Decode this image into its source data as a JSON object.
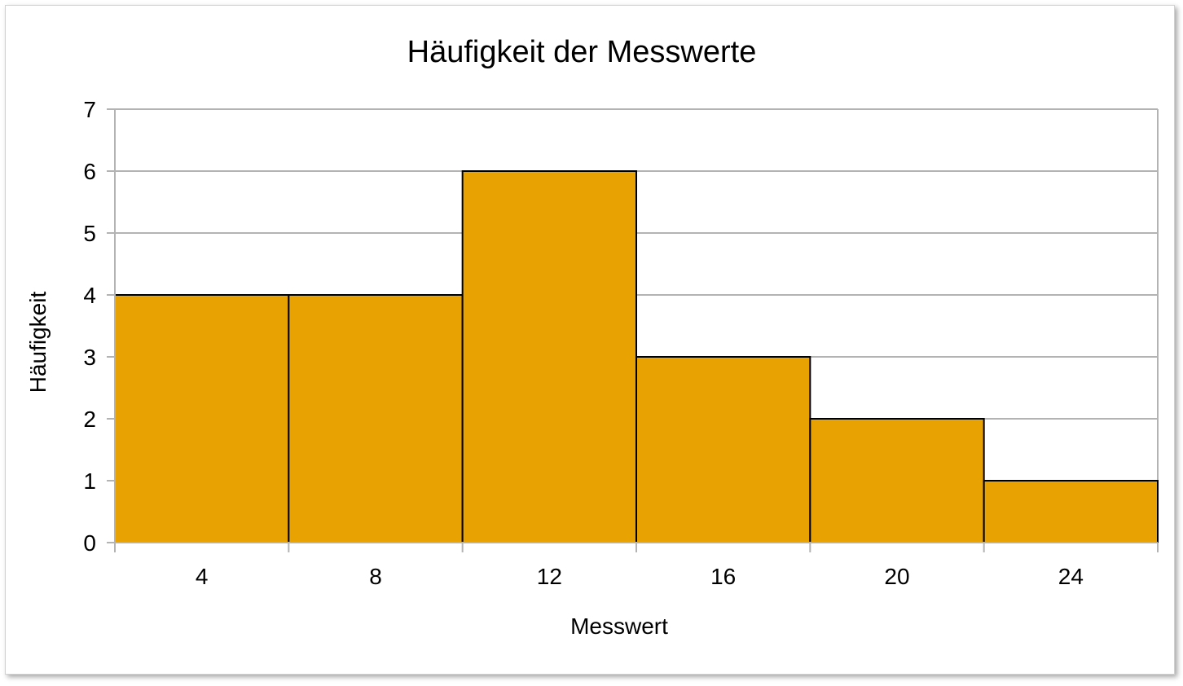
{
  "chart_data": {
    "type": "bar",
    "title": "Häufigkeit der Messwerte",
    "xlabel": "Messwert",
    "ylabel": "Häufigkeit",
    "categories": [
      "4",
      "8",
      "12",
      "16",
      "20",
      "24"
    ],
    "values": [
      4,
      4,
      6,
      3,
      2,
      1
    ],
    "yticks": [
      "0",
      "1",
      "2",
      "3",
      "4",
      "5",
      "6",
      "7"
    ],
    "ylim": [
      0,
      7
    ],
    "grid": true,
    "bar_color": "#e8a202",
    "bar_edge_color": "#000000",
    "grid_color": "#b3b3b3"
  }
}
